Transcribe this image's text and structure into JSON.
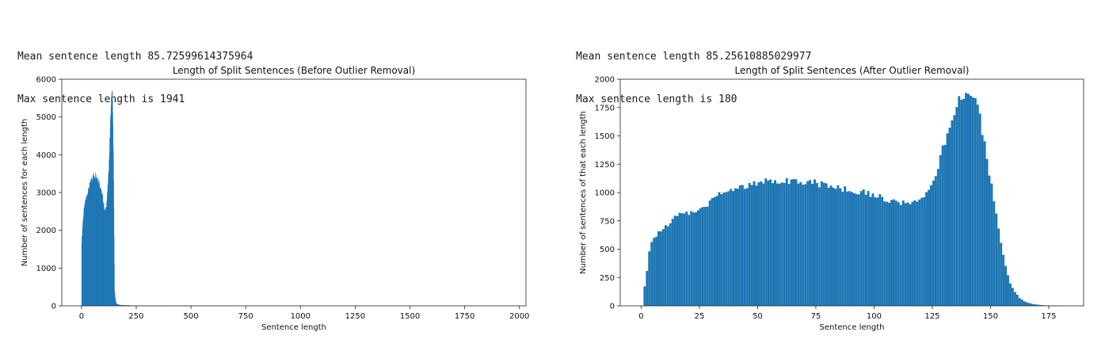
{
  "left_output": {
    "line1": "Mean sentence length 85.72599614375964",
    "line2": "Max sentence length is 1941"
  },
  "right_output": {
    "line1": "Mean sentence length 85.25610885029977",
    "line2": "Max sentence length is 180"
  },
  "chart_data": [
    {
      "type": "bar",
      "title": "Length of Split Sentences (Before Outlier Removal)",
      "xlabel": "Sentence length",
      "ylabel": "Number of sentences for each length",
      "xlim": [
        -90,
        2030
      ],
      "ylim": [
        0,
        6000
      ],
      "xticks": [
        0,
        250,
        500,
        750,
        1000,
        1250,
        1500,
        1750,
        2000
      ],
      "yticks": [
        0,
        1000,
        2000,
        3000,
        4000,
        5000,
        6000
      ],
      "bin_width": 1,
      "color": "#1f77b4",
      "grid": false,
      "bins": [
        [
          0,
          1700
        ],
        [
          5,
          2200
        ],
        [
          10,
          2500
        ],
        [
          15,
          2700
        ],
        [
          20,
          2850
        ],
        [
          25,
          2950
        ],
        [
          30,
          3050
        ],
        [
          35,
          3150
        ],
        [
          40,
          3250
        ],
        [
          45,
          3350
        ],
        [
          50,
          3400
        ],
        [
          55,
          3450
        ],
        [
          60,
          3470
        ],
        [
          65,
          3450
        ],
        [
          70,
          3400
        ],
        [
          75,
          3350
        ],
        [
          80,
          3250
        ],
        [
          85,
          3150
        ],
        [
          90,
          3000
        ],
        [
          95,
          2900
        ],
        [
          100,
          2700
        ],
        [
          105,
          2500
        ],
        [
          110,
          2550
        ],
        [
          115,
          2800
        ],
        [
          120,
          3200
        ],
        [
          125,
          3800
        ],
        [
          130,
          4700
        ],
        [
          135,
          5400
        ],
        [
          140,
          5700
        ],
        [
          145,
          4000
        ],
        [
          150,
          400
        ],
        [
          155,
          120
        ],
        [
          160,
          50
        ],
        [
          170,
          30
        ],
        [
          180,
          20
        ],
        [
          200,
          15
        ],
        [
          230,
          10
        ],
        [
          250,
          8
        ],
        [
          300,
          5
        ],
        [
          400,
          3
        ],
        [
          600,
          2
        ],
        [
          1000,
          1
        ],
        [
          1941,
          1
        ]
      ]
    },
    {
      "type": "bar",
      "title": "Length of Split Sentences (After Outlier Removal)",
      "xlabel": "Sentence length",
      "ylabel": "Number of sentences of that each length",
      "xlim": [
        -9,
        190
      ],
      "ylim": [
        0,
        2000
      ],
      "xticks": [
        0,
        25,
        50,
        75,
        100,
        125,
        150,
        175
      ],
      "yticks": [
        0,
        250,
        500,
        750,
        1000,
        1250,
        1500,
        1750,
        2000
      ],
      "bin_width": 1,
      "color": "#1f77b4",
      "grid": false,
      "bins": [
        [
          1,
          170
        ],
        [
          2,
          300
        ],
        [
          3,
          480
        ],
        [
          4,
          560
        ],
        [
          5,
          600
        ],
        [
          7,
          650
        ],
        [
          10,
          700
        ],
        [
          13,
          760
        ],
        [
          15,
          800
        ],
        [
          18,
          810
        ],
        [
          20,
          820
        ],
        [
          23,
          840
        ],
        [
          25,
          860
        ],
        [
          28,
          900
        ],
        [
          30,
          960
        ],
        [
          33,
          990
        ],
        [
          35,
          1000
        ],
        [
          38,
          1030
        ],
        [
          40,
          1040
        ],
        [
          43,
          1050
        ],
        [
          45,
          1060
        ],
        [
          48,
          1070
        ],
        [
          50,
          1100
        ],
        [
          53,
          1110
        ],
        [
          55,
          1110
        ],
        [
          58,
          1110
        ],
        [
          60,
          1110
        ],
        [
          63,
          1100
        ],
        [
          65,
          1110
        ],
        [
          68,
          1100
        ],
        [
          70,
          1100
        ],
        [
          73,
          1090
        ],
        [
          75,
          1080
        ],
        [
          78,
          1070
        ],
        [
          80,
          1060
        ],
        [
          83,
          1050
        ],
        [
          85,
          1040
        ],
        [
          88,
          1030
        ],
        [
          90,
          1020
        ],
        [
          93,
          1010
        ],
        [
          95,
          1000
        ],
        [
          98,
          990
        ],
        [
          100,
          970
        ],
        [
          103,
          960
        ],
        [
          105,
          940
        ],
        [
          108,
          920
        ],
        [
          110,
          910
        ],
        [
          113,
          900
        ],
        [
          115,
          900
        ],
        [
          118,
          910
        ],
        [
          120,
          930
        ],
        [
          122,
          990
        ],
        [
          124,
          1050
        ],
        [
          126,
          1150
        ],
        [
          128,
          1300
        ],
        [
          130,
          1450
        ],
        [
          132,
          1600
        ],
        [
          134,
          1720
        ],
        [
          136,
          1820
        ],
        [
          138,
          1880
        ],
        [
          140,
          1900
        ],
        [
          142,
          1850
        ],
        [
          144,
          1750
        ],
        [
          146,
          1550
        ],
        [
          148,
          1300
        ],
        [
          150,
          1050
        ],
        [
          152,
          800
        ],
        [
          154,
          550
        ],
        [
          156,
          350
        ],
        [
          158,
          200
        ],
        [
          160,
          120
        ],
        [
          162,
          70
        ],
        [
          164,
          40
        ],
        [
          166,
          25
        ],
        [
          168,
          15
        ],
        [
          170,
          10
        ],
        [
          172,
          5
        ],
        [
          175,
          3
        ],
        [
          178,
          2
        ],
        [
          180,
          1
        ]
      ]
    }
  ]
}
